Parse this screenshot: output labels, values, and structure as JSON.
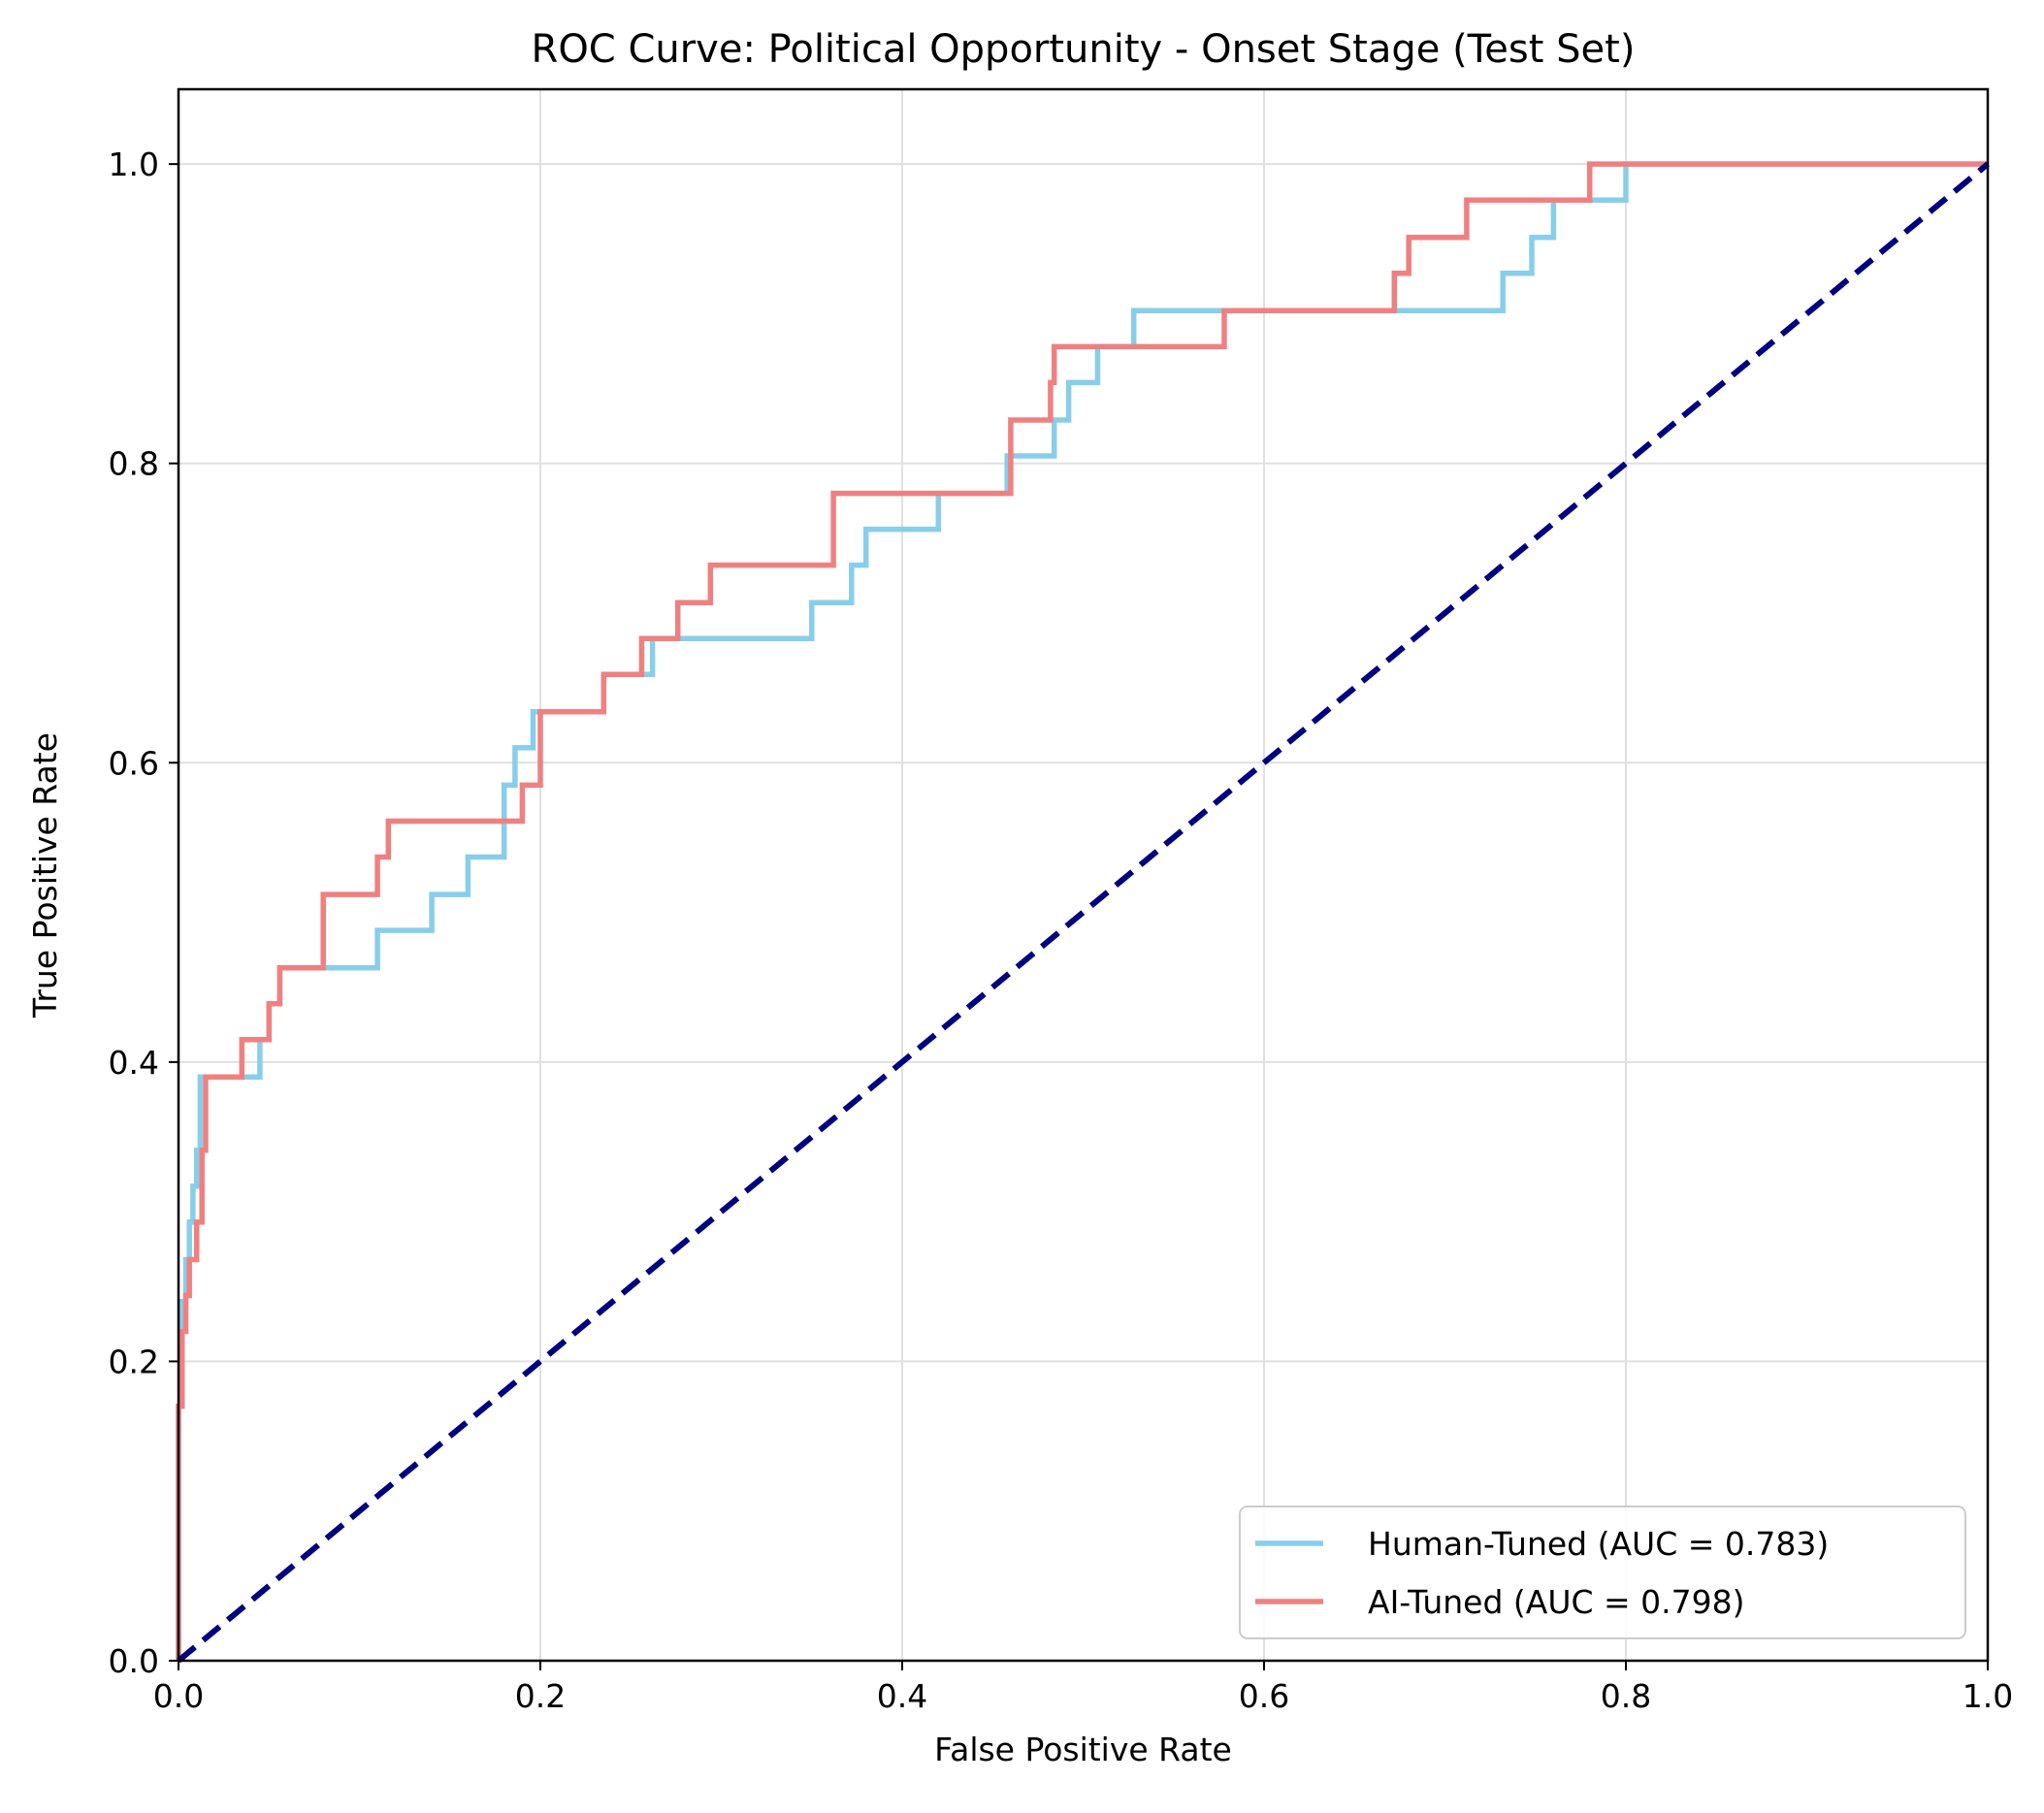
{
  "chart_data": {
    "type": "line",
    "title": "ROC Curve: Political Opportunity - Onset Stage (Test Set)",
    "xlabel": "False Positive Rate",
    "ylabel": "True Positive Rate",
    "xlim": [
      0,
      1
    ],
    "ylim": [
      0,
      1.05
    ],
    "xticks": [
      "0.0",
      "0.2",
      "0.4",
      "0.6",
      "0.8",
      "1.0"
    ],
    "yticks": [
      "0.0",
      "0.2",
      "0.4",
      "0.6",
      "0.8",
      "1.0"
    ],
    "grid": true,
    "legend_position": "lower-right",
    "series": [
      {
        "name": "Human-Tuned (AUC = 0.783)",
        "color": "#87ceeb",
        "x": [
          0,
          0,
          0.002,
          0.002,
          0.004,
          0.004,
          0.006,
          0.006,
          0.008,
          0.008,
          0.01,
          0.01,
          0.012,
          0.012,
          0.045,
          0.045,
          0.05,
          0.05,
          0.056,
          0.056,
          0.11,
          0.11,
          0.14,
          0.14,
          0.16,
          0.16,
          0.18,
          0.18,
          0.186,
          0.186,
          0.196,
          0.196,
          0.235,
          0.235,
          0.258,
          0.258,
          0.262,
          0.262,
          0.35,
          0.35,
          0.372,
          0.372,
          0.38,
          0.38,
          0.42,
          0.42,
          0.456,
          0.456,
          0.458,
          0.458,
          0.484,
          0.484,
          0.492,
          0.492,
          0.508,
          0.508,
          0.528,
          0.528,
          0.732,
          0.732,
          0.748,
          0.748,
          0.756,
          0.756,
          0.76,
          0.76,
          0.8,
          0.8,
          1.0
        ],
        "y": [
          0,
          0.17,
          0.17,
          0.24,
          0.24,
          0.268,
          0.268,
          0.293,
          0.293,
          0.317,
          0.317,
          0.341,
          0.341,
          0.39,
          0.39,
          0.415,
          0.415,
          0.439,
          0.439,
          0.463,
          0.463,
          0.488,
          0.488,
          0.512,
          0.512,
          0.537,
          0.537,
          0.585,
          0.585,
          0.61,
          0.61,
          0.634,
          0.634,
          0.659,
          0.659,
          0.659,
          0.659,
          0.683,
          0.683,
          0.707,
          0.707,
          0.732,
          0.732,
          0.756,
          0.756,
          0.78,
          0.78,
          0.78,
          0.78,
          0.805,
          0.805,
          0.829,
          0.829,
          0.854,
          0.854,
          0.878,
          0.878,
          0.902,
          0.902,
          0.927,
          0.927,
          0.951,
          0.951,
          0.951,
          0.951,
          0.976,
          0.976,
          1.0,
          1.0
        ]
      },
      {
        "name": "AI-Tuned (AUC = 0.798)",
        "color": "#f08080",
        "x": [
          0,
          0,
          0.002,
          0.002,
          0.004,
          0.004,
          0.006,
          0.006,
          0.01,
          0.01,
          0.013,
          0.013,
          0.015,
          0.015,
          0.035,
          0.035,
          0.05,
          0.05,
          0.056,
          0.056,
          0.08,
          0.08,
          0.11,
          0.11,
          0.116,
          0.116,
          0.19,
          0.19,
          0.2,
          0.2,
          0.235,
          0.235,
          0.256,
          0.256,
          0.276,
          0.276,
          0.294,
          0.294,
          0.362,
          0.362,
          0.46,
          0.46,
          0.482,
          0.482,
          0.484,
          0.484,
          0.578,
          0.578,
          0.672,
          0.672,
          0.68,
          0.68,
          0.712,
          0.712,
          0.78,
          0.78,
          1.0
        ],
        "y": [
          0,
          0.17,
          0.17,
          0.22,
          0.22,
          0.244,
          0.244,
          0.268,
          0.268,
          0.293,
          0.293,
          0.341,
          0.341,
          0.39,
          0.39,
          0.415,
          0.415,
          0.439,
          0.439,
          0.463,
          0.463,
          0.512,
          0.512,
          0.537,
          0.537,
          0.561,
          0.561,
          0.585,
          0.585,
          0.634,
          0.634,
          0.659,
          0.659,
          0.683,
          0.683,
          0.707,
          0.707,
          0.732,
          0.732,
          0.78,
          0.78,
          0.829,
          0.829,
          0.854,
          0.854,
          0.878,
          0.878,
          0.902,
          0.902,
          0.927,
          0.927,
          0.951,
          0.951,
          0.976,
          0.976,
          1.0,
          1.0
        ]
      },
      {
        "name": "",
        "color": "#000080",
        "dashed": true,
        "x": [
          0,
          1
        ],
        "y": [
          0,
          1
        ]
      }
    ]
  }
}
